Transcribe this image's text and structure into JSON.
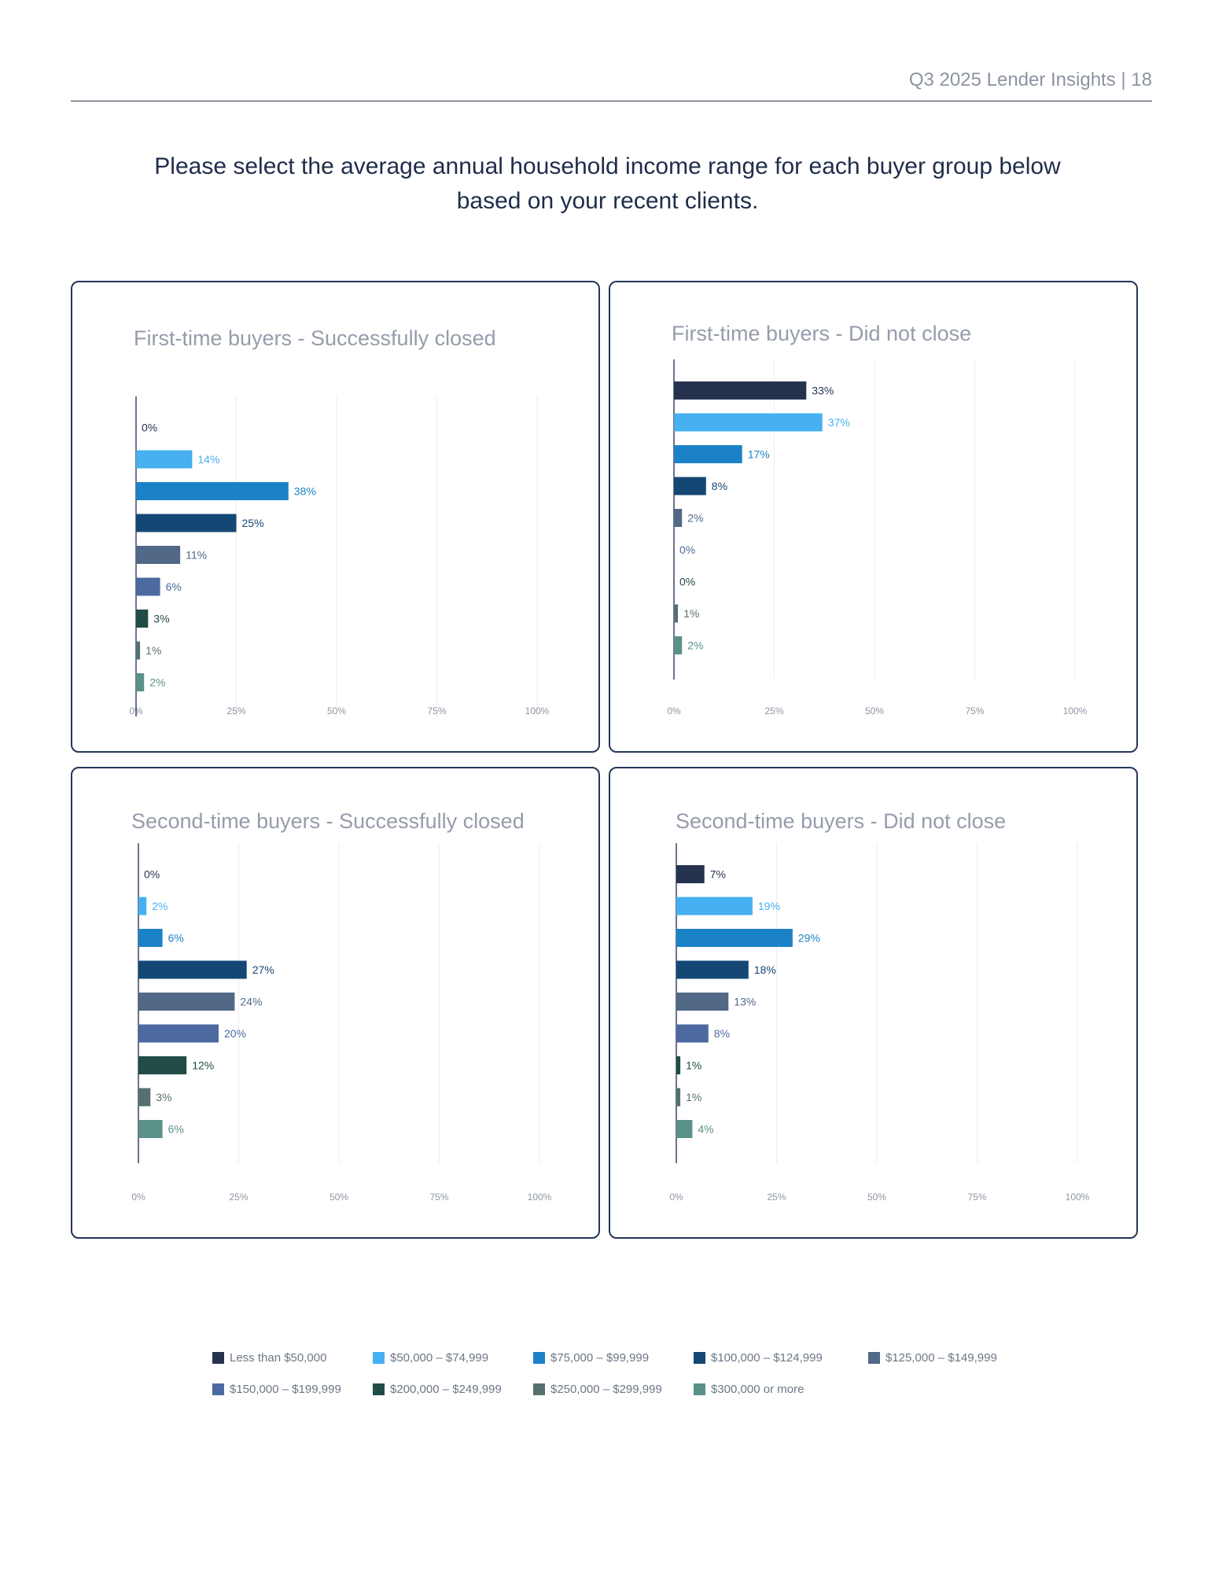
{
  "header": {
    "text": "Q3 2025 Lender Insights | 18"
  },
  "question": "Please select the average annual household income range for each buyer group below based on your recent clients.",
  "legend": {
    "items": [
      {
        "label": "Less than $50,000",
        "color": "#26334f"
      },
      {
        "label": "$50,000 – $74,999",
        "color": "#46b0f0"
      },
      {
        "label": "$75,000 – $99,999",
        "color": "#1c82c7"
      },
      {
        "label": "$100,000 – $124,999",
        "color": "#154775"
      },
      {
        "label": "$125,000 – $149,999",
        "color": "#516886"
      },
      {
        "label": "$150,000 – $199,999",
        "color": "#4c6aa0"
      },
      {
        "label": "$200,000 – $249,999",
        "color": "#224c46"
      },
      {
        "label": "$250,000 – $299,999",
        "color": "#57706f"
      },
      {
        "label": "$300,000 or more",
        "color": "#5a9088"
      }
    ]
  },
  "chart_data": [
    {
      "type": "bar",
      "orientation": "horizontal",
      "title": "First-time buyers - Successfully closed",
      "categories": [
        "Less than $50,000",
        "$50,000 – $74,999",
        "$75,000 – $99,999",
        "$100,000 – $124,999",
        "$125,000 – $149,999",
        "$150,000 – $199,999",
        "$200,000 – $249,999",
        "$250,000 – $299,999",
        "$300,000 or more"
      ],
      "values": [
        0,
        14,
        38,
        25,
        11,
        6,
        3,
        1,
        2
      ],
      "value_labels": [
        "0%",
        "14%",
        "38%",
        "25%",
        "11%",
        "6%",
        "3%",
        "1%",
        "2%"
      ],
      "xticks": [
        "0%",
        "25%",
        "50%",
        "75%",
        "100%"
      ],
      "xlim": [
        0,
        100
      ],
      "grid": true
    },
    {
      "type": "bar",
      "orientation": "horizontal",
      "title": "First-time buyers - Did not close",
      "categories": [
        "Less than $50,000",
        "$50,000 – $74,999",
        "$75,000 – $99,999",
        "$100,000 – $124,999",
        "$125,000 – $149,999",
        "$150,000 – $199,999",
        "$200,000 – $249,999",
        "$250,000 – $299,999",
        "$300,000 or more"
      ],
      "values": [
        33,
        37,
        17,
        8,
        2,
        0,
        0,
        1,
        2
      ],
      "value_labels": [
        "33%",
        "37%",
        "17%",
        "8%",
        "2%",
        "0%",
        "0%",
        "1%",
        "2%"
      ],
      "xticks": [
        "0%",
        "25%",
        "50%",
        "75%",
        "100%"
      ],
      "xlim": [
        0,
        100
      ],
      "grid": true
    },
    {
      "type": "bar",
      "orientation": "horizontal",
      "title": "Second-time buyers - Successfully closed",
      "categories": [
        "Less than $50,000",
        "$50,000 – $74,999",
        "$75,000 – $99,999",
        "$100,000 – $124,999",
        "$125,000 – $149,999",
        "$150,000 – $199,999",
        "$200,000 – $249,999",
        "$250,000 – $299,999",
        "$300,000 or more"
      ],
      "values": [
        0,
        2,
        6,
        27,
        24,
        20,
        12,
        3,
        6
      ],
      "value_labels": [
        "0%",
        "2%",
        "6%",
        "27%",
        "24%",
        "20%",
        "12%",
        "3%",
        "6%"
      ],
      "xticks": [
        "0%",
        "25%",
        "50%",
        "75%",
        "100%"
      ],
      "xlim": [
        0,
        100
      ],
      "grid": true
    },
    {
      "type": "bar",
      "orientation": "horizontal",
      "title": "Second-time buyers - Did not close",
      "categories": [
        "Less than $50,000",
        "$50,000 – $74,999",
        "$75,000 – $99,999",
        "$100,000 – $124,999",
        "$125,000 – $149,999",
        "$150,000 – $199,999",
        "$200,000 – $249,999",
        "$250,000 – $299,999",
        "$300,000 or more"
      ],
      "values": [
        7,
        19,
        29,
        18,
        13,
        8,
        1,
        1,
        4
      ],
      "value_labels": [
        "7%",
        "19%",
        "29%",
        "18%",
        "13%",
        "8%",
        "1%",
        "1%",
        "4%"
      ],
      "xticks": [
        "0%",
        "25%",
        "50%",
        "75%",
        "100%"
      ],
      "xlim": [
        0,
        100
      ],
      "grid": true
    }
  ]
}
